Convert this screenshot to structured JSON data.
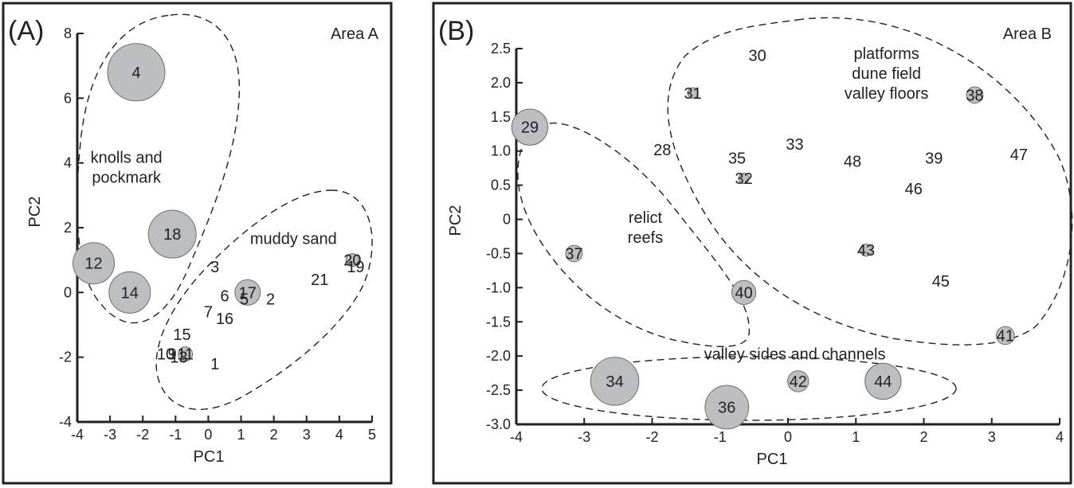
{
  "chart_data": [
    {
      "panel": "(A)",
      "type": "scatter",
      "area_label": "Area A",
      "xlabel": "PC1",
      "ylabel": "PC2",
      "xlim": [
        -4,
        5
      ],
      "ylim": [
        -4,
        8
      ],
      "xticks": [
        -4,
        -3,
        -2,
        -1,
        0,
        1,
        2,
        3,
        4,
        5
      ],
      "yticks": [
        -4,
        -2,
        0,
        2,
        4,
        6,
        8
      ],
      "points": [
        {
          "label": "4",
          "x": -2.2,
          "y": 6.8,
          "size": 1.8
        },
        {
          "label": "18",
          "x": -1.1,
          "y": 1.8,
          "size": 1.5
        },
        {
          "label": "12",
          "x": -3.5,
          "y": 0.9,
          "size": 1.3
        },
        {
          "label": "14",
          "x": -2.4,
          "y": 0.0,
          "size": 1.3
        },
        {
          "label": "3",
          "x": 0.2,
          "y": 0.8,
          "size": 0.1
        },
        {
          "label": "6",
          "x": 0.5,
          "y": -0.1,
          "size": 0.1
        },
        {
          "label": "17",
          "x": 1.2,
          "y": 0.0,
          "size": 0.8
        },
        {
          "label": "5",
          "x": 1.1,
          "y": -0.2,
          "size": 0.1
        },
        {
          "label": "2",
          "x": 1.9,
          "y": -0.2,
          "size": 0.1
        },
        {
          "label": "7",
          "x": 0.0,
          "y": -0.6,
          "size": 0.1
        },
        {
          "label": "16",
          "x": 0.5,
          "y": -0.8,
          "size": 0.1
        },
        {
          "label": "21",
          "x": 3.4,
          "y": 0.4,
          "size": 0.1
        },
        {
          "label": "20",
          "x": 4.4,
          "y": 1.0,
          "size": 0.4
        },
        {
          "label": "19",
          "x": 4.5,
          "y": 0.8,
          "size": 0.1
        },
        {
          "label": "15",
          "x": -0.8,
          "y": -1.3,
          "size": 0.1
        },
        {
          "label": "10",
          "x": -1.3,
          "y": -1.9,
          "size": 0.1
        },
        {
          "label": "9",
          "x": -1.1,
          "y": -1.9,
          "size": 0.1
        },
        {
          "label": "11",
          "x": -0.7,
          "y": -1.9,
          "size": 0.45
        },
        {
          "label": "13",
          "x": -0.9,
          "y": -2.0,
          "size": 0.1
        },
        {
          "label": "1",
          "x": 0.2,
          "y": -2.2,
          "size": 0.1
        }
      ],
      "group_labels": [
        {
          "text": [
            "knolls and",
            "pockmark"
          ],
          "x": -2.5,
          "y": 4.0
        },
        {
          "text": [
            "muddy sand"
          ],
          "x": 2.6,
          "y": 1.5
        }
      ]
    },
    {
      "panel": "(B)",
      "type": "scatter",
      "area_label": "Area B",
      "xlabel": "PC1",
      "ylabel": "PC2",
      "xlim": [
        -4,
        4
      ],
      "ylim": [
        -3.0,
        2.5
      ],
      "xticks": [
        -4,
        -3,
        -2,
        -1,
        0,
        1,
        2,
        3,
        4
      ],
      "yticks": [
        -3.0,
        -2.5,
        -2.0,
        -1.5,
        -1.0,
        -0.5,
        0,
        0.5,
        1.0,
        1.5,
        2.0,
        2.5
      ],
      "ytick_labels": [
        "-3.0",
        "-2.5",
        "-2.0",
        "-1.5",
        "-1.0",
        "-0.5",
        "0",
        "0.5",
        "1.0",
        "1.5",
        "2.0",
        "2.5"
      ],
      "points": [
        {
          "label": "30",
          "x": -0.45,
          "y": 2.4,
          "size": 0.1
        },
        {
          "label": "31",
          "x": -1.4,
          "y": 1.85,
          "size": 0.35
        },
        {
          "label": "38",
          "x": 2.75,
          "y": 1.82,
          "size": 0.55
        },
        {
          "label": "29",
          "x": -3.8,
          "y": 1.35,
          "size": 1.2
        },
        {
          "label": "28",
          "x": -1.85,
          "y": 1.02,
          "size": 0.1
        },
        {
          "label": "33",
          "x": 0.1,
          "y": 1.1,
          "size": 0.1
        },
        {
          "label": "35",
          "x": -0.75,
          "y": 0.9,
          "size": 0.1
        },
        {
          "label": "48",
          "x": 0.95,
          "y": 0.85,
          "size": 0.1
        },
        {
          "label": "39",
          "x": 2.15,
          "y": 0.9,
          "size": 0.1
        },
        {
          "label": "47",
          "x": 3.4,
          "y": 0.95,
          "size": 0.1
        },
        {
          "label": "32",
          "x": -0.65,
          "y": 0.6,
          "size": 0.35
        },
        {
          "label": "46",
          "x": 1.85,
          "y": 0.45,
          "size": 0.1
        },
        {
          "label": "37",
          "x": -3.15,
          "y": -0.5,
          "size": 0.55
        },
        {
          "label": "43",
          "x": 1.15,
          "y": -0.45,
          "size": 0.4
        },
        {
          "label": "45",
          "x": 2.25,
          "y": -0.9,
          "size": 0.1
        },
        {
          "label": "40",
          "x": -0.65,
          "y": -1.07,
          "size": 0.8
        },
        {
          "label": "41",
          "x": 3.2,
          "y": -1.7,
          "size": 0.6
        },
        {
          "label": "34",
          "x": -2.55,
          "y": -2.37,
          "size": 1.6
        },
        {
          "label": "42",
          "x": 0.15,
          "y": -2.37,
          "size": 0.7
        },
        {
          "label": "44",
          "x": 1.4,
          "y": -2.37,
          "size": 1.2
        },
        {
          "label": "36",
          "x": -0.9,
          "y": -2.75,
          "size": 1.45
        }
      ],
      "group_labels": [
        {
          "text": [
            "platforms",
            "dune field",
            "valley floors"
          ],
          "x": 1.45,
          "y": 2.35
        },
        {
          "text": [
            "relict",
            "reefs"
          ],
          "x": -2.1,
          "y": -0.05
        },
        {
          "text": [
            "valley sides and channels"
          ],
          "x": 0.1,
          "y": -2.05
        }
      ]
    }
  ]
}
